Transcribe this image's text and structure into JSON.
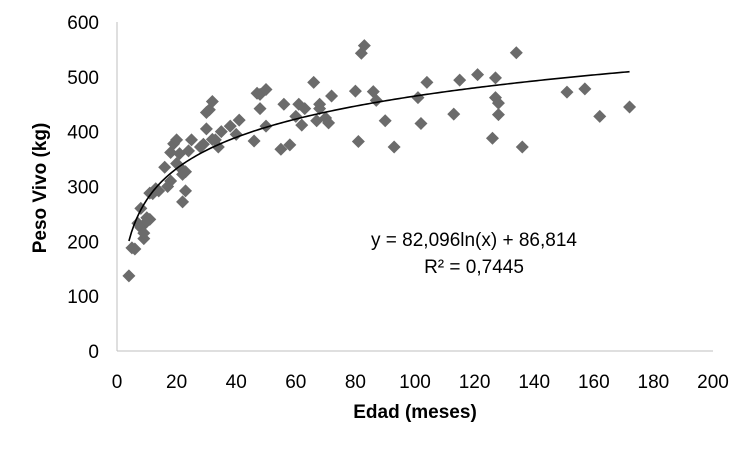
{
  "chart_data": {
    "type": "scatter",
    "xlabel": "Edad (meses)",
    "ylabel": "Peso Vivo (kg)",
    "xlim": [
      0,
      200
    ],
    "ylim": [
      0,
      600
    ],
    "x_ticks": [
      "0",
      "20",
      "40",
      "60",
      "80",
      "100",
      "120",
      "140",
      "160",
      "180",
      "200"
    ],
    "y_ticks": [
      "0",
      "100",
      "200",
      "300",
      "400",
      "500",
      "600"
    ],
    "grid": false,
    "legend": "none",
    "marker": "diamond",
    "marker_color": "#6b6b6b",
    "trendline": {
      "type": "logarithmic",
      "a": 82.096,
      "b": 86.814,
      "x_range": [
        4,
        172
      ],
      "color": "#000000",
      "equation_label": "y = 82,096ln(x) + 86,814",
      "r2_label": "R² = 0,7445"
    },
    "points": [
      [
        4,
        137
      ],
      [
        5,
        188
      ],
      [
        6,
        186
      ],
      [
        7,
        233
      ],
      [
        8,
        225
      ],
      [
        8,
        260
      ],
      [
        9,
        205
      ],
      [
        9,
        215
      ],
      [
        10,
        243
      ],
      [
        10,
        236
      ],
      [
        11,
        240
      ],
      [
        11,
        288
      ],
      [
        12,
        287
      ],
      [
        13,
        296
      ],
      [
        14,
        292
      ],
      [
        16,
        335
      ],
      [
        17,
        300
      ],
      [
        18,
        310
      ],
      [
        18,
        362
      ],
      [
        19,
        378
      ],
      [
        20,
        342
      ],
      [
        20,
        385
      ],
      [
        21,
        360
      ],
      [
        22,
        330
      ],
      [
        22,
        272
      ],
      [
        22,
        322
      ],
      [
        23,
        327
      ],
      [
        23,
        292
      ],
      [
        24,
        365
      ],
      [
        25,
        385
      ],
      [
        28,
        372
      ],
      [
        29,
        377
      ],
      [
        30,
        405
      ],
      [
        30,
        435
      ],
      [
        31,
        440
      ],
      [
        32,
        455
      ],
      [
        32,
        386
      ],
      [
        33,
        385
      ],
      [
        34,
        372
      ],
      [
        35,
        400
      ],
      [
        38,
        410
      ],
      [
        40,
        395
      ],
      [
        41,
        421
      ],
      [
        46,
        383
      ],
      [
        47,
        470
      ],
      [
        48,
        442
      ],
      [
        48,
        468
      ],
      [
        50,
        477
      ],
      [
        50,
        410
      ],
      [
        55,
        368
      ],
      [
        56,
        450
      ],
      [
        58,
        376
      ],
      [
        60,
        428
      ],
      [
        61,
        450
      ],
      [
        62,
        412
      ],
      [
        63,
        442
      ],
      [
        66,
        490
      ],
      [
        67,
        420
      ],
      [
        68,
        450
      ],
      [
        68,
        442
      ],
      [
        70,
        425
      ],
      [
        71,
        416
      ],
      [
        72,
        465
      ],
      [
        80,
        474
      ],
      [
        81,
        382
      ],
      [
        82,
        543
      ],
      [
        83,
        557
      ],
      [
        86,
        473
      ],
      [
        87,
        457
      ],
      [
        90,
        420
      ],
      [
        93,
        372
      ],
      [
        101,
        462
      ],
      [
        102,
        415
      ],
      [
        104,
        490
      ],
      [
        113,
        432
      ],
      [
        115,
        494
      ],
      [
        121,
        504
      ],
      [
        126,
        388
      ],
      [
        127,
        498
      ],
      [
        127,
        462
      ],
      [
        128,
        431
      ],
      [
        128,
        452
      ],
      [
        134,
        544
      ],
      [
        136,
        372
      ],
      [
        151,
        472
      ],
      [
        157,
        478
      ],
      [
        162,
        428
      ],
      [
        172,
        445
      ]
    ]
  }
}
